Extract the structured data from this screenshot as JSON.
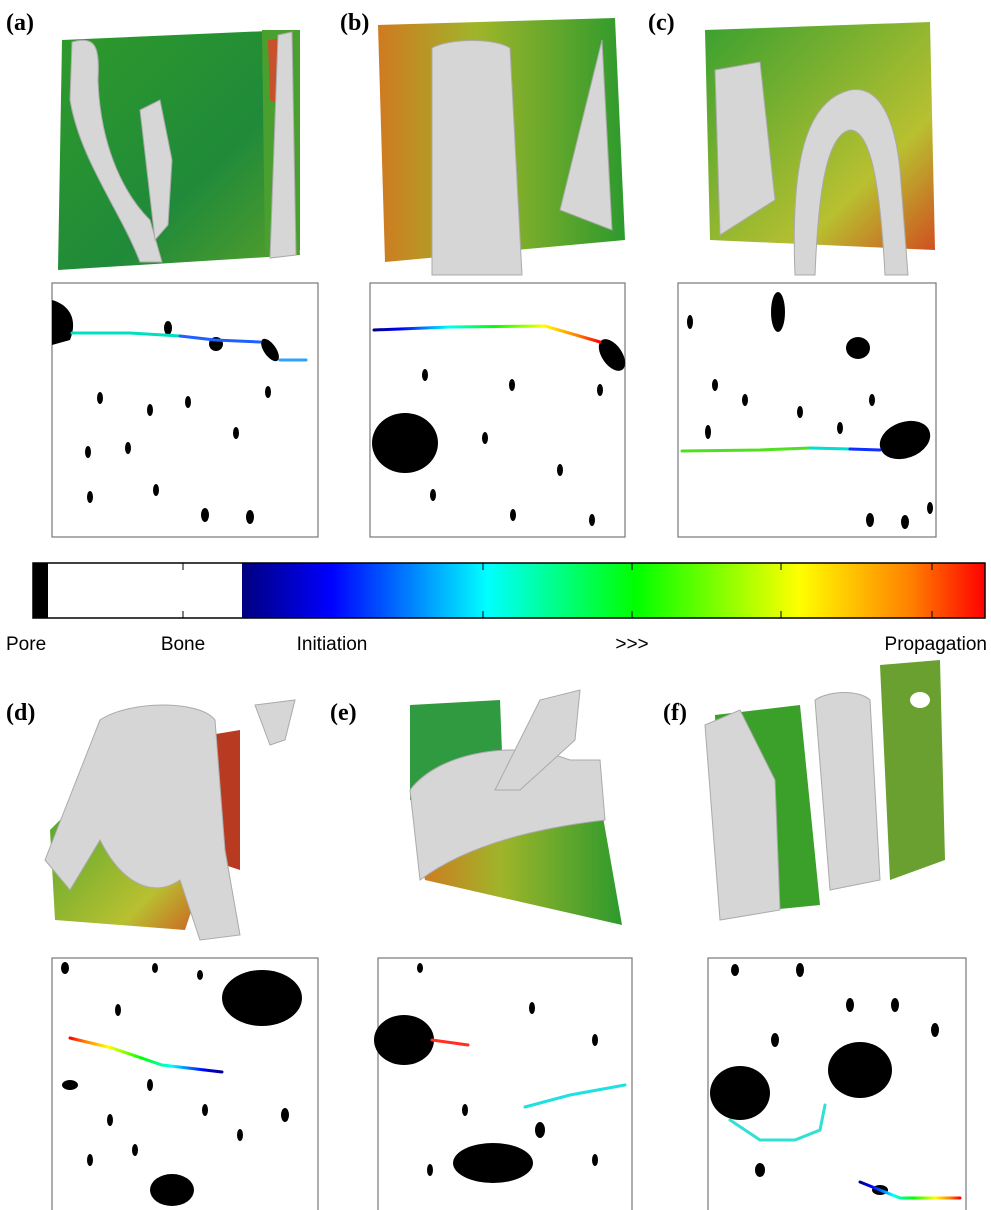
{
  "panels": [
    {
      "label": "(a)"
    },
    {
      "label": "(b)"
    },
    {
      "label": "(c)"
    },
    {
      "label": "(d)"
    },
    {
      "label": "(e)"
    },
    {
      "label": "(f)"
    }
  ],
  "colorbar": {
    "labels": [
      "Pore",
      "Bone",
      "Initiation",
      ">>>",
      "Propagation"
    ]
  }
}
